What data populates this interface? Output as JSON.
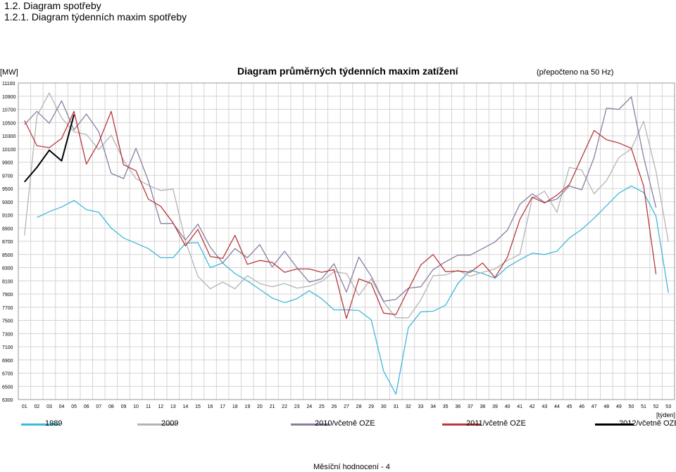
{
  "page": {
    "heading1": "1.2. Diagram spotřeby",
    "heading2": "1.2.1. Diagram týdenních maxim spotřeby",
    "footer": "Měsíční hodnocení - 4"
  },
  "chart_data": {
    "type": "line",
    "title": "Diagram průměrných týdenních maxim zatížení",
    "subtitle": "(přepočteno na 50 Hz)",
    "ylabel": "[MW]",
    "xlabel": "[týden]",
    "ylim": [
      6300,
      11100
    ],
    "yticks": [
      11100,
      10900,
      10700,
      10500,
      10300,
      10100,
      9900,
      9700,
      9500,
      9300,
      9100,
      8900,
      8700,
      8500,
      8300,
      8100,
      7900,
      7700,
      7500,
      7300,
      7100,
      6900,
      6700,
      6500,
      6300
    ],
    "categories": [
      "01",
      "02",
      "03",
      "04",
      "05",
      "06",
      "07",
      "08",
      "09",
      "10",
      "11",
      "12",
      "13",
      "14",
      "15",
      "16",
      "17",
      "18",
      "19",
      "20",
      "21",
      "22",
      "23",
      "24",
      "25",
      "26",
      "27",
      "28",
      "29",
      "30",
      "31",
      "32",
      "33",
      "34",
      "35",
      "36",
      "37",
      "38",
      "39",
      "40",
      "41",
      "42",
      "43",
      "44",
      "45",
      "46",
      "47",
      "48",
      "49",
      "50",
      "51",
      "52",
      "53"
    ],
    "grid": true,
    "legend_position": "bottom",
    "series": [
      {
        "name": "1989",
        "color": "#3fb8dc",
        "values": [
          null,
          9060,
          9150,
          9220,
          9320,
          9180,
          9140,
          8900,
          8750,
          8670,
          8590,
          8450,
          8450,
          8670,
          8680,
          8300,
          8370,
          8210,
          8100,
          7970,
          7840,
          7770,
          7830,
          7950,
          7830,
          7660,
          7660,
          7650,
          7510,
          6730,
          6380,
          7390,
          7630,
          7640,
          7730,
          8060,
          8260,
          8210,
          8140,
          8310,
          8420,
          8520,
          8500,
          8550,
          8750,
          8880,
          9050,
          9240,
          9430,
          9540,
          9440,
          9080,
          7920
        ]
      },
      {
        "name": "2009",
        "color": "#b4b4b4",
        "values": [
          8790,
          10600,
          10950,
          10570,
          10360,
          10320,
          10090,
          10310,
          9930,
          9650,
          9550,
          9470,
          9490,
          8700,
          8170,
          7980,
          8080,
          7980,
          8180,
          8060,
          8010,
          8060,
          7990,
          8020,
          8090,
          8240,
          8210,
          7880,
          8130,
          7780,
          7540,
          7540,
          7810,
          8180,
          8190,
          8260,
          8170,
          8230,
          8280,
          8410,
          8500,
          9350,
          9460,
          9140,
          9820,
          9780,
          9420,
          9620,
          9970,
          10100,
          10520,
          9760,
          8690
        ]
      },
      {
        "name": "2010/včetně OZE",
        "color": "#8b7ca0",
        "values": [
          10470,
          10670,
          10490,
          10830,
          10390,
          10630,
          10360,
          9730,
          9650,
          10110,
          9620,
          8970,
          8970,
          8720,
          8960,
          8610,
          8370,
          8590,
          8450,
          8650,
          8310,
          8550,
          8300,
          8080,
          8130,
          8360,
          7930,
          8460,
          8170,
          7790,
          7820,
          7990,
          8010,
          8270,
          8390,
          8490,
          8490,
          8590,
          8690,
          8870,
          9260,
          9420,
          9290,
          9340,
          9540,
          9480,
          9970,
          10720,
          10700,
          10890,
          9980,
          9210,
          null
        ]
      },
      {
        "name": "2011/včetně OZE",
        "color": "#b8383c",
        "values": [
          10530,
          10150,
          10120,
          10260,
          10670,
          9870,
          10200,
          10670,
          9860,
          9770,
          9340,
          9230,
          8980,
          8630,
          8880,
          8470,
          8440,
          8790,
          8350,
          8410,
          8380,
          8230,
          8280,
          8280,
          8230,
          8270,
          7530,
          8130,
          8060,
          7610,
          7590,
          7970,
          8340,
          8500,
          8240,
          8250,
          8230,
          8370,
          8150,
          8460,
          9030,
          9370,
          9280,
          9400,
          9560,
          9970,
          10380,
          10240,
          10190,
          10110,
          9540,
          8200,
          null
        ]
      },
      {
        "name": "2012/včetně OZE",
        "color": "#000000",
        "values": [
          9600,
          9820,
          10080,
          9920,
          10620,
          null,
          null,
          null,
          null,
          null,
          null,
          null,
          null,
          null,
          null,
          null,
          null,
          null,
          null,
          null,
          null,
          null,
          null,
          null,
          null,
          null,
          null,
          null,
          null,
          null,
          null,
          null,
          null,
          null,
          null,
          null,
          null,
          null,
          null,
          null,
          null,
          null,
          null,
          null,
          null,
          null,
          null,
          null,
          null,
          null,
          null,
          null,
          null
        ]
      }
    ]
  }
}
